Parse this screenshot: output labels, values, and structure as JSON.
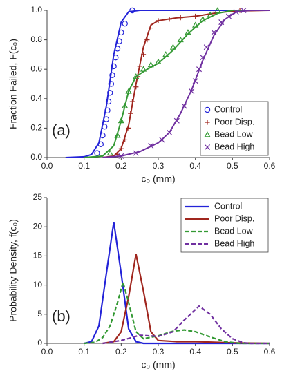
{
  "chart_data": [
    {
      "type": "scatter",
      "panel_label": "(a)",
      "xlabel": "c₀ (mm)",
      "ylabel": "Fraction Failed, F(c₀)",
      "xlim": [
        0,
        0.6
      ],
      "xticks": [
        {
          "value": 0,
          "label": "0.0"
        },
        0.1,
        0.2,
        0.3,
        0.4,
        0.5,
        0.6
      ],
      "ylim": [
        0,
        1
      ],
      "yticks": [
        {
          "value": 0,
          "label": "0.0"
        },
        0.2,
        0.4,
        0.6,
        0.8,
        {
          "value": 1,
          "label": "1.0"
        }
      ],
      "legend": "lower right",
      "series": [
        {
          "name": "Control",
          "color": "#2323d8",
          "marker": "o",
          "x": [
            0.135,
            0.145,
            0.15,
            0.155,
            0.16,
            0.163,
            0.166,
            0.17,
            0.173,
            0.176,
            0.18,
            0.185,
            0.19,
            0.195,
            0.2,
            0.21,
            0.23
          ],
          "values": [
            0.03,
            0.09,
            0.15,
            0.21,
            0.26,
            0.32,
            0.38,
            0.44,
            0.5,
            0.56,
            0.62,
            0.68,
            0.74,
            0.79,
            0.85,
            0.91,
            1.0
          ],
          "fit_x": [
            0.05,
            0.1,
            0.12,
            0.14,
            0.16,
            0.18,
            0.2,
            0.22,
            0.25,
            0.3,
            0.6
          ],
          "fit_values": [
            0,
            0.005,
            0.02,
            0.1,
            0.35,
            0.7,
            0.92,
            0.99,
            1,
            1,
            1
          ]
        },
        {
          "name": "Poor Disp.",
          "color": "#a0261e",
          "marker": "+",
          "x": [
            0.19,
            0.2,
            0.21,
            0.22,
            0.225,
            0.23,
            0.24,
            0.245,
            0.25,
            0.26,
            0.27,
            0.28,
            0.3,
            0.33,
            0.36,
            0.4,
            0.45,
            0.52
          ],
          "values": [
            0.02,
            0.06,
            0.12,
            0.2,
            0.3,
            0.38,
            0.48,
            0.55,
            0.62,
            0.7,
            0.8,
            0.88,
            0.93,
            0.94,
            0.95,
            0.96,
            0.98,
            1.0
          ],
          "fit_x": [
            0.15,
            0.18,
            0.2,
            0.22,
            0.24,
            0.26,
            0.28,
            0.3,
            0.35,
            0.4,
            0.45,
            0.5,
            0.6
          ],
          "fit_values": [
            0,
            0.01,
            0.06,
            0.22,
            0.5,
            0.75,
            0.9,
            0.93,
            0.95,
            0.96,
            0.98,
            0.995,
            1
          ]
        },
        {
          "name": "Bead Low",
          "color": "#339933",
          "marker": "^",
          "x": [
            0.17,
            0.19,
            0.2,
            0.21,
            0.22,
            0.24,
            0.26,
            0.28,
            0.3,
            0.32,
            0.34,
            0.36,
            0.38,
            0.4,
            0.42,
            0.44,
            0.46
          ],
          "values": [
            0.03,
            0.15,
            0.25,
            0.35,
            0.45,
            0.55,
            0.6,
            0.63,
            0.65,
            0.7,
            0.75,
            0.8,
            0.85,
            0.9,
            0.94,
            0.97,
            1.0
          ],
          "fit_x": [
            0.1,
            0.15,
            0.18,
            0.2,
            0.22,
            0.24,
            0.27,
            0.3,
            0.34,
            0.38,
            0.42,
            0.46,
            0.5,
            0.6
          ],
          "fit_values": [
            0,
            0.01,
            0.08,
            0.25,
            0.45,
            0.55,
            0.6,
            0.64,
            0.73,
            0.84,
            0.93,
            0.98,
            1,
            1
          ]
        },
        {
          "name": "Bead High",
          "color": "#7030a0",
          "marker": "x",
          "x": [
            0.2,
            0.24,
            0.28,
            0.31,
            0.33,
            0.35,
            0.37,
            0.39,
            0.4,
            0.41,
            0.42,
            0.43,
            0.45,
            0.47,
            0.49,
            0.51,
            0.53
          ],
          "values": [
            0.01,
            0.03,
            0.08,
            0.12,
            0.17,
            0.25,
            0.35,
            0.45,
            0.52,
            0.6,
            0.68,
            0.75,
            0.85,
            0.92,
            0.96,
            0.99,
            1.0
          ],
          "fit_x": [
            0.15,
            0.2,
            0.25,
            0.3,
            0.33,
            0.36,
            0.39,
            0.42,
            0.45,
            0.48,
            0.51,
            0.55,
            0.6
          ],
          "fit_values": [
            0,
            0.01,
            0.04,
            0.1,
            0.17,
            0.3,
            0.46,
            0.66,
            0.83,
            0.94,
            0.99,
            1,
            1
          ]
        }
      ]
    },
    {
      "type": "line",
      "panel_label": "(b)",
      "xlabel": "c₀ (mm)",
      "ylabel": "Probability Density, f(c₀)",
      "xlim": [
        0,
        0.6
      ],
      "xticks": [
        {
          "value": 0,
          "label": "0.0"
        },
        0.1,
        0.2,
        0.3,
        0.4,
        0.5,
        0.6
      ],
      "ylim": [
        0,
        25
      ],
      "yticks": [
        0,
        5,
        10,
        15,
        20,
        25
      ],
      "legend": "upper right",
      "series": [
        {
          "name": "Control",
          "color": "#2323d8",
          "dash": false,
          "x": [
            0.1,
            0.12,
            0.14,
            0.16,
            0.18,
            0.2,
            0.22,
            0.24,
            0.26,
            0.6
          ],
          "values": [
            0,
            0.3,
            3,
            12,
            20.8,
            12,
            2.5,
            0.3,
            0,
            0
          ]
        },
        {
          "name": "Poor Disp.",
          "color": "#a0261e",
          "dash": false,
          "x": [
            0.15,
            0.18,
            0.2,
            0.22,
            0.24,
            0.26,
            0.28,
            0.3,
            0.35,
            0.4,
            0.45,
            0.5,
            0.6
          ],
          "values": [
            0,
            0.3,
            2,
            8,
            15.3,
            9,
            2,
            0.5,
            0.3,
            0.3,
            0.2,
            0.1,
            0
          ]
        },
        {
          "name": "Bead Low",
          "color": "#339933",
          "dash": true,
          "x": [
            0.1,
            0.13,
            0.15,
            0.17,
            0.19,
            0.205,
            0.22,
            0.24,
            0.26,
            0.3,
            0.34,
            0.37,
            0.4,
            0.44,
            0.48,
            0.52,
            0.6
          ],
          "values": [
            0,
            0.2,
            1,
            3,
            7,
            10.5,
            7,
            2,
            0.8,
            1.3,
            2.1,
            2.3,
            2,
            1.1,
            0.3,
            0,
            0
          ]
        },
        {
          "name": "Bead High",
          "color": "#7030a0",
          "dash": true,
          "x": [
            0.15,
            0.2,
            0.25,
            0.3,
            0.34,
            0.37,
            0.41,
            0.44,
            0.47,
            0.5,
            0.53,
            0.55,
            0.6
          ],
          "values": [
            0,
            0.5,
            1.4,
            1.2,
            2,
            4,
            6.4,
            5,
            2.5,
            0.8,
            0.1,
            0,
            0
          ]
        }
      ]
    }
  ]
}
